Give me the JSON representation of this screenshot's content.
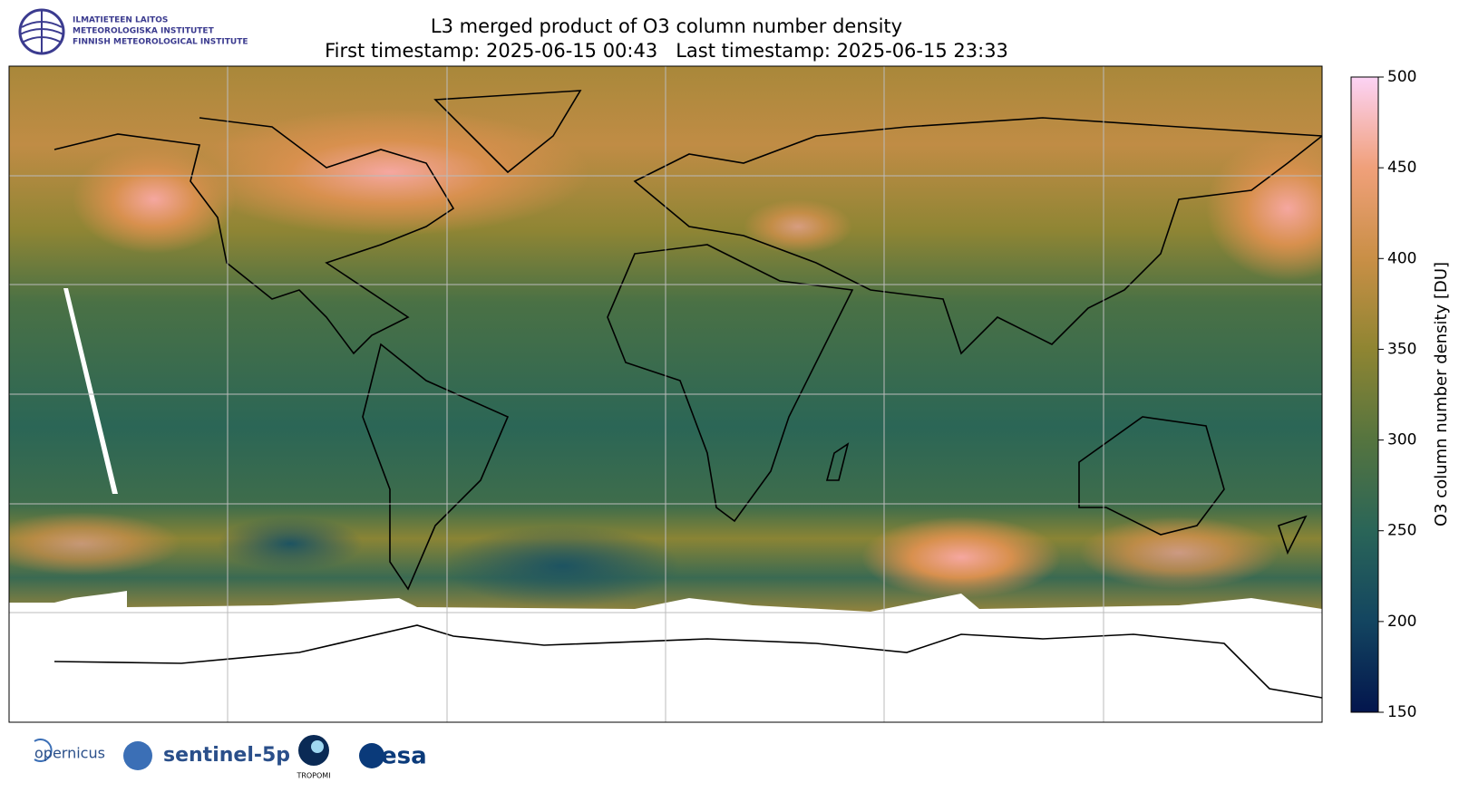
{
  "header": {
    "institute": [
      "ILMATIETEEN LAITOS",
      "METEOROLOGISKA INSTITUTET",
      "FINNISH METEOROLOGICAL INSTITUTE"
    ],
    "title": "L3 merged product of O3 column number density",
    "subtitle": "First timestamp: 2025-06-15 00:43   Last timestamp: 2025-06-15 23:33"
  },
  "colorbar": {
    "label": "O3 column number density [DU]",
    "lim": [
      150,
      500
    ],
    "ticks": [
      150,
      200,
      250,
      300,
      350,
      400,
      450,
      500
    ],
    "colors": [
      "#03154d",
      "#134560",
      "#2a6558",
      "#55743f",
      "#8f8532",
      "#c98f46",
      "#f0a07a",
      "#fcd3f5"
    ]
  },
  "footer": {
    "logos": [
      "opernicus",
      "sentinel-5p",
      "TROPOMI",
      "esa"
    ]
  }
}
